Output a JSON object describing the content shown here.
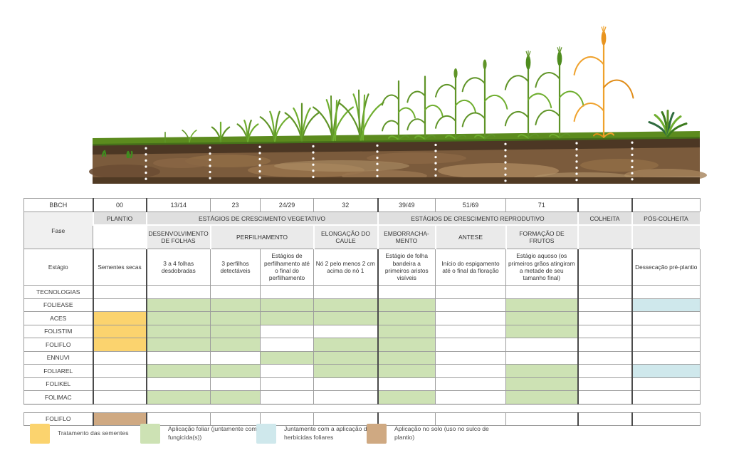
{
  "table": {
    "bbch_label": "BBCH",
    "fase_label": "Fase",
    "estagio_label": "Estágio",
    "tecnologias_label": "TECNOLOGIAS",
    "bbch_codes": [
      "00",
      "13/14",
      "23",
      "24/29",
      "32",
      "39/49",
      "51/69",
      "71",
      "",
      ""
    ],
    "phase_bands": {
      "plantio": "PLANTIO",
      "vegetativo": "ESTÁGIOS DE CRESCIMENTO VEGETATIVO",
      "reprodutivo": "ESTÁGIOS DE CRESCIMENTO REPRODUTIVO",
      "colheita": "COLHEITA",
      "pos_colheita": "PÓS-COLHEITA"
    },
    "sub_phases": {
      "desenvolvimento": "DESENVOLVIMENTO DE FOLHAS",
      "perfilhamento": "PERFILHAMENTO",
      "elongacao": "ELONGAÇÃO DO CAULE",
      "emborrachamento": "EMBORRACHA-MENTO",
      "antese": "ANTESE",
      "formacao": "FORMAÇÃO DE FRUTOS"
    },
    "estagio_descriptions": [
      "Sementes secas",
      "3 a 4 folhas desdobradas",
      "3 perfilhos detectáveis",
      "Estágios de perfilhamento até o final do perfilhamento",
      "Nó 2 pelo menos 2 cm acima do nó 1",
      "Estágio de folha bandeira a primeiros aristos visíveis",
      "Início do espigamento até o final da floração",
      "Estágio aquoso (os primeiros grãos atingiram a metade de seu tamanho final)",
      "",
      "Dessecação pré-plantio"
    ],
    "products": [
      {
        "name": "FOLIEASE",
        "cells": [
          "",
          "G",
          "G",
          "G",
          "G",
          "G",
          "",
          "G",
          "",
          "B"
        ]
      },
      {
        "name": "ACES",
        "cells": [
          "Y",
          "G",
          "G",
          "G",
          "G",
          "G",
          "",
          "G",
          "",
          ""
        ]
      },
      {
        "name": "FOLISTIM",
        "cells": [
          "Y",
          "G",
          "G",
          "",
          "",
          "G",
          "",
          "G",
          "",
          ""
        ]
      },
      {
        "name": "FOLIFLO",
        "cells": [
          "Y",
          "G",
          "G",
          "",
          "G",
          "G",
          "",
          "",
          "",
          ""
        ]
      },
      {
        "name": "ENNUVI",
        "cells": [
          "",
          "",
          "",
          "G",
          "G",
          "G",
          "",
          "",
          "",
          ""
        ]
      },
      {
        "name": "FOLIAREL",
        "cells": [
          "",
          "G",
          "G",
          "",
          "G",
          "G",
          "",
          "G",
          "",
          "B"
        ]
      },
      {
        "name": "FOLIKEL",
        "cells": [
          "",
          "",
          "",
          "",
          "",
          "",
          "",
          "G",
          "",
          ""
        ]
      },
      {
        "name": "FOLIMAC",
        "cells": [
          "",
          "G",
          "G",
          "",
          "",
          "G",
          "",
          "G",
          "",
          ""
        ]
      }
    ],
    "soil_row": {
      "name": "FOLIFLO",
      "cells": [
        "N",
        "",
        "",
        "",
        "",
        "",
        "",
        "",
        "",
        ""
      ]
    }
  },
  "legend": [
    {
      "color_key": "yellow",
      "label": "Tratamento das sementes"
    },
    {
      "color_key": "green",
      "label": "Aplicação foliar (juntamente com fungicida(s))"
    },
    {
      "color_key": "blue",
      "label": "Juntamente com a aplicação de herbicidas foliares"
    },
    {
      "color_key": "brown",
      "label": "Aplicação no solo (uso no sulco de plantio)"
    }
  ],
  "colors": {
    "yellow": "#fbd36e",
    "green": "#cde2b4",
    "blue": "#cfe8ec",
    "brown": "#cfa982"
  }
}
